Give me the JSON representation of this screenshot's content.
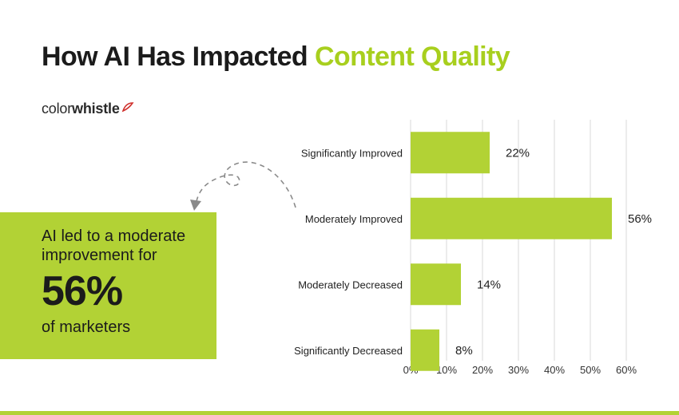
{
  "header": {
    "title_main": "How AI Has Impacted",
    "title_accent": "Content Quality"
  },
  "brand": {
    "part1": "color",
    "part2": "whistle"
  },
  "callout": {
    "line1": "AI led to a moderate",
    "line2": "improvement for",
    "big_value": "56%",
    "line3": "of marketers"
  },
  "colors": {
    "accent": "#b2d235",
    "title_accent": "#a8cf1e",
    "text": "#1b1b1b",
    "grid": "#d9d9d9"
  },
  "chart_data": {
    "type": "bar",
    "orientation": "horizontal",
    "categories": [
      "Significantly Improved",
      "Moderately Improved",
      "Moderately Decreased",
      "Significantly Decreased"
    ],
    "values": [
      22,
      56,
      14,
      8
    ],
    "value_labels": [
      "22%",
      "56%",
      "14%",
      "8%"
    ],
    "xticks": [
      0,
      10,
      20,
      30,
      40,
      50,
      60
    ],
    "xtick_labels": [
      "0%",
      "10%",
      "20%",
      "30%",
      "40%",
      "50%",
      "60%"
    ],
    "xlim": [
      0,
      60
    ],
    "grid": true,
    "color": "#b2d235"
  }
}
